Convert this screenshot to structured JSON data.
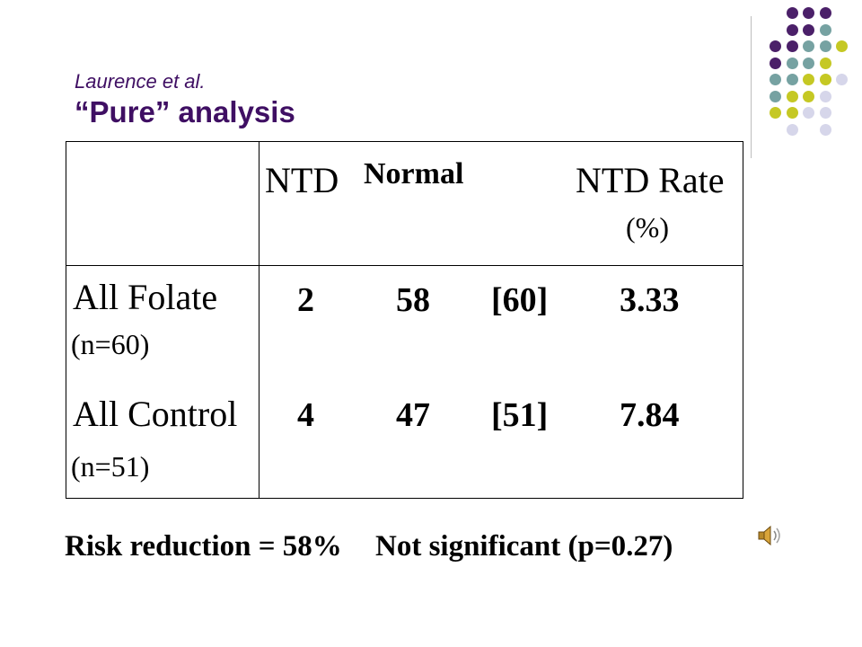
{
  "slide": {
    "title_author": "Laurence et al.",
    "title_main": "“Pure” analysis"
  },
  "table": {
    "headers": {
      "ntd": "NTD",
      "normal": "Normal",
      "rate": "NTD Rate",
      "rate_unit": "(%)"
    },
    "rows": [
      {
        "label": "All Folate",
        "n": "(n=60)",
        "ntd": "2",
        "normal": "58",
        "total": "[60]",
        "rate": "3.33"
      },
      {
        "label": "All Control",
        "n": "(n=51)",
        "ntd": "4",
        "normal": "47",
        "total": "[51]",
        "rate": "7.84"
      }
    ]
  },
  "footer": {
    "risk": "Risk reduction = 58%",
    "significance": "Not significant (p=0.27)"
  },
  "icons": {
    "audio": "speaker-icon"
  },
  "colors": {
    "title": "#3f0f63",
    "dot_purple": "#4b2069",
    "dot_teal": "#76a2a2",
    "dot_yellow": "#c5c824",
    "dot_lavender": "#d6d6ea"
  }
}
